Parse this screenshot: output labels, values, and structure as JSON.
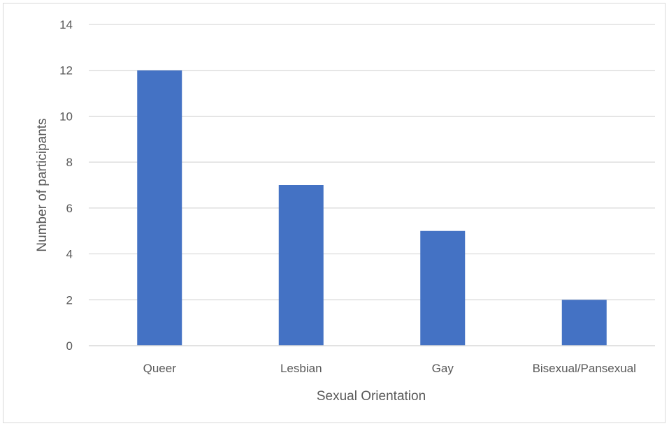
{
  "chart_data": {
    "type": "bar",
    "title": "",
    "xlabel": "Sexual Orientation",
    "ylabel": "Number of participants",
    "categories": [
      "Queer",
      "Lesbian",
      "Gay",
      "Bisexual/Pansexual"
    ],
    "values": [
      12,
      7,
      5,
      2
    ],
    "ylim": [
      0,
      14
    ],
    "yticks": [
      "0",
      "2",
      "4",
      "6",
      "8",
      "10",
      "12",
      "14"
    ],
    "grid": true,
    "legend": "none",
    "bar_color": "#4472C4",
    "gridline_color": "#d9d9d9"
  }
}
